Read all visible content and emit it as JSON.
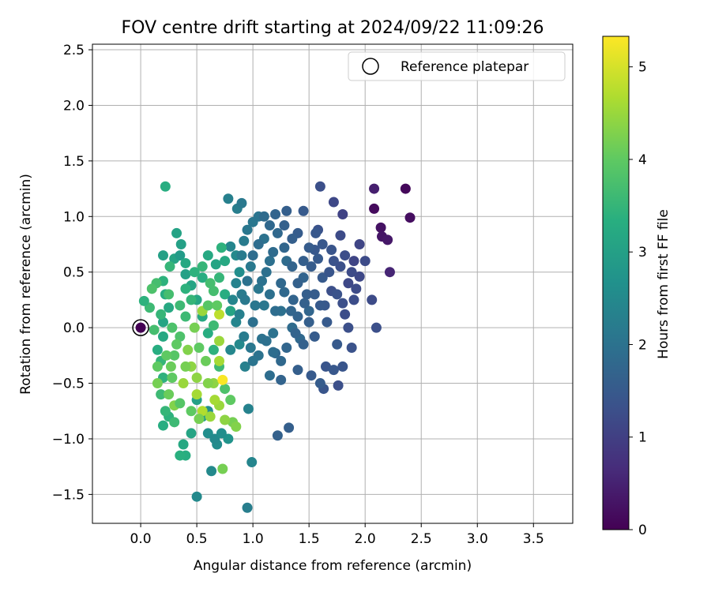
{
  "chart_data": {
    "type": "scatter",
    "title": "FOV centre drift starting at 2024/09/22 11:09:26",
    "xlabel": "Angular distance from reference (arcmin)",
    "ylabel": "Rotation from reference (arcmin)",
    "xlim": [
      -0.43,
      3.85
    ],
    "ylim": [
      -1.76,
      2.55
    ],
    "xticks": [
      0.0,
      0.5,
      1.0,
      1.5,
      2.0,
      2.5,
      3.0,
      3.5
    ],
    "yticks": [
      -1.5,
      -1.0,
      -0.5,
      0.0,
      0.5,
      1.0,
      1.5,
      2.0,
      2.5
    ],
    "xtick_labels": [
      "0.0",
      "0.5",
      "1.0",
      "1.5",
      "2.0",
      "2.5",
      "3.0",
      "3.5"
    ],
    "ytick_labels": [
      "−1.5",
      "−1.0",
      "−0.5",
      "0.0",
      "0.5",
      "1.0",
      "1.5",
      "2.0",
      "2.5"
    ],
    "grid": true,
    "legend": {
      "position": "top-right",
      "entries": [
        "Reference platepar"
      ]
    },
    "reference_point": {
      "x": 0.0,
      "y": 0.0
    },
    "colorbar": {
      "label": "Hours from first FF file",
      "colormap": "viridis",
      "range": [
        0,
        5.33
      ],
      "ticks": [
        0,
        1,
        2,
        3,
        4,
        5
      ],
      "tick_labels": [
        "0",
        "1",
        "2",
        "3",
        "4",
        "5"
      ]
    },
    "points": [
      [
        2.08,
        1.25,
        0.45
      ],
      [
        2.36,
        1.25,
        0.1
      ],
      [
        2.4,
        0.99,
        0.2
      ],
      [
        2.08,
        1.07,
        0.15
      ],
      [
        2.14,
        0.9,
        0.25
      ],
      [
        2.15,
        0.82,
        0.3
      ],
      [
        2.2,
        0.79,
        0.35
      ],
      [
        2.22,
        0.5,
        0.55
      ],
      [
        2.1,
        0.0,
        1.3
      ],
      [
        2.06,
        0.25,
        1.2
      ],
      [
        1.9,
        0.6,
        1.1
      ],
      [
        1.85,
        0.4,
        1.15
      ],
      [
        1.8,
        1.02,
        1.05
      ],
      [
        1.72,
        1.13,
        1.15
      ],
      [
        1.6,
        1.27,
        1.3
      ],
      [
        1.78,
        0.83,
        1.2
      ],
      [
        1.9,
        0.25,
        1.25
      ],
      [
        1.95,
        0.75,
        1.1
      ],
      [
        2.0,
        0.6,
        1.2
      ],
      [
        1.95,
        0.46,
        1.15
      ],
      [
        1.75,
        -0.15,
        1.5
      ],
      [
        1.88,
        -0.18,
        1.35
      ],
      [
        1.65,
        -0.35,
        1.4
      ],
      [
        1.72,
        -0.38,
        1.45
      ],
      [
        1.52,
        -0.43,
        1.5
      ],
      [
        1.63,
        -0.55,
        1.4
      ],
      [
        1.6,
        -0.5,
        1.55
      ],
      [
        1.76,
        -0.52,
        1.3
      ],
      [
        1.8,
        -0.35,
        1.4
      ],
      [
        1.55,
        -0.08,
        1.55
      ],
      [
        1.64,
        0.2,
        1.45
      ],
      [
        1.7,
        0.33,
        1.3
      ],
      [
        1.82,
        0.12,
        1.25
      ],
      [
        1.58,
        0.88,
        1.35
      ],
      [
        1.55,
        0.7,
        1.45
      ],
      [
        1.45,
        1.05,
        1.5
      ],
      [
        1.3,
        1.05,
        1.6
      ],
      [
        1.4,
        0.85,
        1.55
      ],
      [
        1.2,
        1.02,
        1.7
      ],
      [
        1.36,
        0.25,
        1.7
      ],
      [
        1.4,
        -0.38,
        1.6
      ],
      [
        1.32,
        -0.9,
        1.6
      ],
      [
        1.22,
        -0.97,
        1.65
      ],
      [
        1.2,
        -0.23,
        1.8
      ],
      [
        1.25,
        -0.47,
        1.7
      ],
      [
        1.15,
        -0.43,
        1.9
      ],
      [
        1.08,
        -0.1,
        2.0
      ],
      [
        1.0,
        0.05,
        1.95
      ],
      [
        0.95,
        0.42,
        2.0
      ],
      [
        0.92,
        0.78,
        2.2
      ],
      [
        0.86,
        1.07,
        2.25
      ],
      [
        0.78,
        1.16,
        2.3
      ],
      [
        0.9,
        1.12,
        2.15
      ],
      [
        1.0,
        0.95,
        2.1
      ],
      [
        1.05,
        1.0,
        2.05
      ],
      [
        1.1,
        0.8,
        2.0
      ],
      [
        1.15,
        0.6,
        1.95
      ],
      [
        1.25,
        0.4,
        1.8
      ],
      [
        1.3,
        0.6,
        1.85
      ],
      [
        1.45,
        0.45,
        1.7
      ],
      [
        1.5,
        0.15,
        1.75
      ],
      [
        1.42,
        -0.1,
        1.8
      ],
      [
        1.35,
        0.0,
        1.85
      ],
      [
        1.25,
        0.15,
        1.95
      ],
      [
        1.18,
        -0.05,
        2.0
      ],
      [
        1.1,
        0.2,
        2.1
      ],
      [
        1.05,
        0.35,
        2.1
      ],
      [
        0.98,
        0.55,
        2.15
      ],
      [
        0.9,
        0.3,
        2.2
      ],
      [
        0.85,
        0.05,
        2.4
      ],
      [
        0.8,
        -0.2,
        2.45
      ],
      [
        0.88,
        -0.15,
        2.5
      ],
      [
        0.93,
        -0.35,
        2.3
      ],
      [
        0.96,
        -0.73,
        2.35
      ],
      [
        0.99,
        -1.21,
        2.4
      ],
      [
        0.95,
        -1.62,
        2.25
      ],
      [
        0.63,
        -1.29,
        2.5
      ],
      [
        0.6,
        -0.95,
        2.6
      ],
      [
        0.68,
        -1.05,
        2.55
      ],
      [
        0.78,
        -1.0,
        2.7
      ],
      [
        0.55,
        -0.8,
        2.9
      ],
      [
        0.5,
        -0.65,
        3.0
      ],
      [
        0.45,
        -0.95,
        3.1
      ],
      [
        0.38,
        -1.05,
        3.2
      ],
      [
        0.4,
        -1.15,
        3.3
      ],
      [
        0.35,
        -1.15,
        3.35
      ],
      [
        0.5,
        -1.52,
        2.5
      ],
      [
        0.25,
        -0.8,
        3.4
      ],
      [
        0.2,
        -0.88,
        3.3
      ],
      [
        0.22,
        -0.75,
        3.5
      ],
      [
        0.18,
        -0.6,
        3.6
      ],
      [
        0.2,
        -0.45,
        3.4
      ],
      [
        0.18,
        -0.3,
        3.5
      ],
      [
        0.15,
        -0.2,
        3.3
      ],
      [
        0.2,
        -0.08,
        3.2
      ],
      [
        0.2,
        0.05,
        3.1
      ],
      [
        0.25,
        0.18,
        3.2
      ],
      [
        0.22,
        0.3,
        3.3
      ],
      [
        0.2,
        0.42,
        3.4
      ],
      [
        0.2,
        0.65,
        3.0
      ],
      [
        0.3,
        0.62,
        3.1
      ],
      [
        0.32,
        0.85,
        3.05
      ],
      [
        0.22,
        1.27,
        3.3
      ],
      [
        0.26,
        0.55,
        3.5
      ],
      [
        0.14,
        0.4,
        3.7
      ],
      [
        0.1,
        0.35,
        3.8
      ],
      [
        0.08,
        0.18,
        3.6
      ],
      [
        0.03,
        0.24,
        3.4
      ],
      [
        0.35,
        0.65,
        2.9
      ],
      [
        0.4,
        0.48,
        3.0
      ],
      [
        0.45,
        0.38,
        3.1
      ],
      [
        0.5,
        0.25,
        3.15
      ],
      [
        0.55,
        0.1,
        3.2
      ],
      [
        0.6,
        -0.05,
        3.3
      ],
      [
        0.65,
        -0.2,
        3.4
      ],
      [
        0.7,
        -0.35,
        3.6
      ],
      [
        0.75,
        -0.55,
        3.8
      ],
      [
        0.8,
        -0.65,
        4.0
      ],
      [
        0.82,
        -0.85,
        4.2
      ],
      [
        0.85,
        -0.89,
        4.3
      ],
      [
        0.75,
        -0.83,
        4.4
      ],
      [
        0.73,
        -1.27,
        4.2
      ],
      [
        0.66,
        -1.0,
        2.5
      ],
      [
        0.6,
        -0.75,
        2.6
      ],
      [
        0.72,
        -0.95,
        2.6
      ],
      [
        0.7,
        -0.7,
        4.5
      ],
      [
        0.65,
        -0.5,
        4.4
      ],
      [
        0.7,
        -0.3,
        4.6
      ],
      [
        0.7,
        -0.12,
        4.5
      ],
      [
        0.73,
        -0.47,
        5.3
      ],
      [
        0.7,
        0.12,
        4.8
      ],
      [
        0.6,
        0.65,
        3.2
      ],
      [
        0.67,
        0.57,
        3.1
      ],
      [
        0.55,
        0.45,
        3.3
      ],
      [
        0.45,
        0.25,
        3.5
      ],
      [
        0.4,
        0.1,
        3.6
      ],
      [
        0.35,
        -0.08,
        3.8
      ],
      [
        0.3,
        -0.25,
        3.9
      ],
      [
        0.28,
        -0.45,
        4.0
      ],
      [
        0.25,
        -0.6,
        4.1
      ],
      [
        0.3,
        -0.7,
        4.3
      ],
      [
        0.38,
        -0.5,
        4.5
      ],
      [
        0.45,
        -0.35,
        4.4
      ],
      [
        0.5,
        -0.6,
        4.6
      ],
      [
        0.55,
        -0.75,
        4.7
      ],
      [
        0.62,
        -0.8,
        4.5
      ],
      [
        0.66,
        -0.65,
        4.6
      ],
      [
        0.5,
        -0.45,
        4.4
      ],
      [
        0.42,
        -0.2,
        4.3
      ],
      [
        0.48,
        0.0,
        4.2
      ],
      [
        0.55,
        0.15,
        4.5
      ],
      [
        0.6,
        0.2,
        3.9
      ],
      [
        0.65,
        0.33,
        3.7
      ],
      [
        0.7,
        0.45,
        3.5
      ],
      [
        0.75,
        0.3,
        3.3
      ],
      [
        0.8,
        0.15,
        3.1
      ],
      [
        0.88,
        0.5,
        2.6
      ],
      [
        0.85,
        0.65,
        2.5
      ],
      [
        0.8,
        0.73,
        2.4
      ],
      [
        0.72,
        0.72,
        3.4
      ],
      [
        0.75,
        0.6,
        3.2
      ],
      [
        0.65,
        0.02,
        3.6
      ],
      [
        0.58,
        -0.3,
        4.1
      ],
      [
        0.52,
        -0.18,
        4.0
      ],
      [
        0.4,
        -0.35,
        4.2
      ],
      [
        0.32,
        -0.15,
        4.0
      ],
      [
        0.28,
        0.0,
        3.8
      ],
      [
        0.35,
        0.2,
        3.6
      ],
      [
        0.4,
        0.35,
        3.4
      ],
      [
        0.15,
        -0.5,
        4.2
      ],
      [
        0.15,
        -0.35,
        4.0
      ],
      [
        0.12,
        -0.02,
        3.7
      ],
      [
        0.18,
        0.12,
        3.5
      ],
      [
        0.3,
        -0.85,
        3.6
      ],
      [
        0.35,
        -0.68,
        3.9
      ],
      [
        0.45,
        -0.75,
        4.0
      ],
      [
        0.52,
        -0.82,
        4.2
      ],
      [
        0.6,
        -0.5,
        4.3
      ],
      [
        0.68,
        0.2,
        4.0
      ],
      [
        0.62,
        0.4,
        3.7
      ],
      [
        0.55,
        0.55,
        3.5
      ],
      [
        0.48,
        0.5,
        3.4
      ],
      [
        0.4,
        0.58,
        3.2
      ],
      [
        0.36,
        0.75,
        3.0
      ],
      [
        0.25,
        0.3,
        3.7
      ],
      [
        0.23,
        -0.25,
        4.0
      ],
      [
        0.27,
        -0.35,
        4.1
      ],
      [
        1.0,
        0.65,
        1.9
      ],
      [
        1.05,
        0.75,
        1.9
      ],
      [
        1.12,
        0.5,
        1.95
      ],
      [
        1.18,
        0.68,
        1.85
      ],
      [
        1.22,
        0.85,
        1.8
      ],
      [
        1.28,
        0.72,
        1.75
      ],
      [
        1.35,
        0.55,
        1.7
      ],
      [
        1.4,
        0.4,
        1.65
      ],
      [
        1.48,
        0.3,
        1.6
      ],
      [
        1.52,
        0.55,
        1.55
      ],
      [
        1.58,
        0.62,
        1.5
      ],
      [
        1.62,
        0.45,
        1.5
      ],
      [
        1.68,
        0.5,
        1.4
      ],
      [
        1.72,
        0.6,
        1.35
      ],
      [
        1.78,
        0.55,
        1.3
      ],
      [
        1.82,
        0.65,
        1.25
      ],
      [
        1.88,
        0.5,
        1.2
      ],
      [
        1.92,
        0.35,
        1.2
      ],
      [
        1.66,
        0.05,
        1.5
      ],
      [
        1.6,
        0.2,
        1.5
      ],
      [
        1.55,
        0.3,
        1.55
      ],
      [
        1.5,
        0.05,
        1.6
      ],
      [
        1.45,
        -0.15,
        1.65
      ],
      [
        1.38,
        -0.05,
        1.7
      ],
      [
        1.3,
        -0.18,
        1.75
      ],
      [
        1.25,
        -0.3,
        1.8
      ],
      [
        1.18,
        -0.22,
        1.9
      ],
      [
        1.12,
        -0.12,
        1.95
      ],
      [
        1.05,
        -0.25,
        2.0
      ],
      [
        1.0,
        -0.3,
        2.05
      ],
      [
        0.98,
        -0.18,
        2.1
      ],
      [
        0.92,
        -0.08,
        2.2
      ],
      [
        0.88,
        0.12,
        2.3
      ],
      [
        0.93,
        0.25,
        2.15
      ],
      [
        1.02,
        0.2,
        2.1
      ],
      [
        1.08,
        0.42,
        2.0
      ],
      [
        1.15,
        0.3,
        1.95
      ],
      [
        1.2,
        0.15,
        1.9
      ],
      [
        1.28,
        0.32,
        1.8
      ],
      [
        1.34,
        0.15,
        1.75
      ],
      [
        1.4,
        0.1,
        1.7
      ],
      [
        1.46,
        0.22,
        1.65
      ],
      [
        1.35,
        0.8,
        1.6
      ],
      [
        1.28,
        0.92,
        1.65
      ],
      [
        1.15,
        0.92,
        1.8
      ],
      [
        1.1,
        1.0,
        1.85
      ],
      [
        0.95,
        0.88,
        2.1
      ],
      [
        0.9,
        0.65,
        2.2
      ],
      [
        0.85,
        0.4,
        2.35
      ],
      [
        0.82,
        0.25,
        2.4
      ],
      [
        1.45,
        0.6,
        1.6
      ],
      [
        1.5,
        0.72,
        1.55
      ],
      [
        1.56,
        0.85,
        1.45
      ],
      [
        1.62,
        0.75,
        1.45
      ],
      [
        1.7,
        0.7,
        1.4
      ],
      [
        1.75,
        0.3,
        1.35
      ],
      [
        1.8,
        0.22,
        1.3
      ],
      [
        1.85,
        0.0,
        1.3
      ]
    ]
  }
}
